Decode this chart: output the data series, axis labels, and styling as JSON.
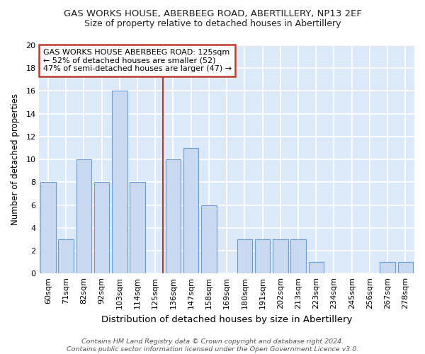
{
  "title": "GAS WORKS HOUSE, ABERBEEG ROAD, ABERTILLERY, NP13 2EF",
  "subtitle": "Size of property relative to detached houses in Abertillery",
  "xlabel": "Distribution of detached houses by size in Abertillery",
  "ylabel": "Number of detached properties",
  "categories": [
    "60sqm",
    "71sqm",
    "82sqm",
    "92sqm",
    "103sqm",
    "114sqm",
    "125sqm",
    "136sqm",
    "147sqm",
    "158sqm",
    "169sqm",
    "180sqm",
    "191sqm",
    "202sqm",
    "213sqm",
    "223sqm",
    "234sqm",
    "245sqm",
    "256sqm",
    "267sqm",
    "278sqm"
  ],
  "values": [
    8,
    3,
    10,
    8,
    16,
    8,
    0,
    10,
    11,
    6,
    0,
    3,
    3,
    3,
    3,
    1,
    0,
    0,
    0,
    1,
    1
  ],
  "bar_color": "#c9d9f0",
  "bar_edge_color": "#6a9fd8",
  "highlight_index": 6,
  "highlight_line_color": "#c0392b",
  "ylim": [
    0,
    20
  ],
  "yticks": [
    0,
    2,
    4,
    6,
    8,
    10,
    12,
    14,
    16,
    18,
    20
  ],
  "annotation_text": "GAS WORKS HOUSE ABERBEEG ROAD: 125sqm\n← 52% of detached houses are smaller (52)\n47% of semi-detached houses are larger (47) →",
  "annotation_box_color": "#ffffff",
  "annotation_box_edge_color": "#c0392b",
  "footer_text": "Contains HM Land Registry data © Crown copyright and database right 2024.\nContains public sector information licensed under the Open Government Licence v3.0.",
  "plot_bg_color": "#dce9f8",
  "figure_bg_color": "#ffffff",
  "grid_color": "#ffffff",
  "title_fontsize": 9.5,
  "subtitle_fontsize": 9,
  "xlabel_fontsize": 9.5,
  "ylabel_fontsize": 8.5,
  "tick_fontsize": 8,
  "annotation_fontsize": 8,
  "footer_fontsize": 6.8
}
